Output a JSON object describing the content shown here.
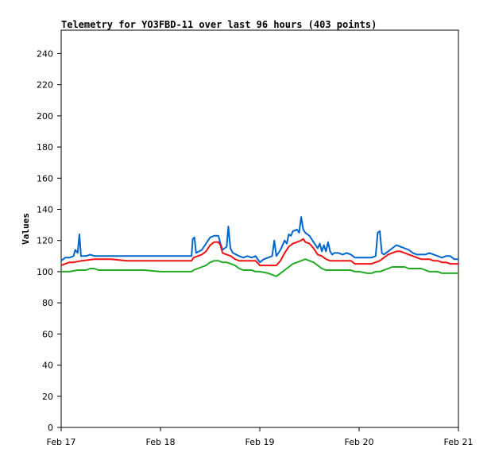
{
  "chart_data": {
    "type": "line",
    "title": "Telemetry for YO3FBD-11 over last 96 hours (403 points)",
    "xlabel": "",
    "ylabel": "Values",
    "xlim": [
      0,
      96
    ],
    "ylim": [
      0,
      255
    ],
    "grid": false,
    "x_ticks": [
      {
        "x": 0,
        "label": "Feb 17"
      },
      {
        "x": 24,
        "label": "Feb 18"
      },
      {
        "x": 48,
        "label": "Feb 19"
      },
      {
        "x": 72,
        "label": "Feb 20"
      },
      {
        "x": 96,
        "label": "Feb 21"
      }
    ],
    "y_ticks": [
      0,
      20,
      40,
      60,
      80,
      100,
      120,
      140,
      160,
      180,
      200,
      220,
      240
    ],
    "series": [
      {
        "color": "#0066cc",
        "points": [
          [
            0,
            107
          ],
          [
            1,
            109
          ],
          [
            2,
            109
          ],
          [
            3,
            110
          ],
          [
            3.4,
            114
          ],
          [
            4,
            112
          ],
          [
            4.4,
            124
          ],
          [
            4.8,
            110
          ],
          [
            6,
            110
          ],
          [
            7,
            111
          ],
          [
            8,
            110
          ],
          [
            10,
            110
          ],
          [
            16,
            110
          ],
          [
            20,
            110
          ],
          [
            24,
            110
          ],
          [
            28,
            110
          ],
          [
            31.5,
            110
          ],
          [
            31.8,
            121
          ],
          [
            32.2,
            122
          ],
          [
            32.6,
            112
          ],
          [
            34,
            114
          ],
          [
            35,
            118
          ],
          [
            36,
            122
          ],
          [
            37,
            123
          ],
          [
            38,
            123
          ],
          [
            38.5,
            118
          ],
          [
            39,
            114
          ],
          [
            40,
            116
          ],
          [
            40.4,
            129
          ],
          [
            40.9,
            115
          ],
          [
            41.5,
            112
          ],
          [
            43,
            110
          ],
          [
            44,
            109
          ],
          [
            45,
            110
          ],
          [
            46,
            109
          ],
          [
            47,
            110
          ],
          [
            48,
            106
          ],
          [
            49,
            108
          ],
          [
            50,
            109
          ],
          [
            51,
            110
          ],
          [
            51.5,
            120
          ],
          [
            52,
            110
          ],
          [
            53,
            114
          ],
          [
            54,
            120
          ],
          [
            54.5,
            118
          ],
          [
            55,
            124
          ],
          [
            55.5,
            123
          ],
          [
            56,
            126
          ],
          [
            57,
            127
          ],
          [
            57.5,
            125
          ],
          [
            58,
            135
          ],
          [
            58.5,
            127
          ],
          [
            59,
            125
          ],
          [
            60,
            123
          ],
          [
            61,
            119
          ],
          [
            62,
            115
          ],
          [
            62.5,
            118
          ],
          [
            63,
            113
          ],
          [
            63.5,
            117
          ],
          [
            64,
            113
          ],
          [
            64.5,
            119
          ],
          [
            65,
            113
          ],
          [
            65.5,
            111
          ],
          [
            66,
            112
          ],
          [
            67,
            112
          ],
          [
            68,
            111
          ],
          [
            69,
            112
          ],
          [
            70,
            111
          ],
          [
            71,
            109
          ],
          [
            72,
            109
          ],
          [
            73,
            109
          ],
          [
            75,
            109
          ],
          [
            76,
            110
          ],
          [
            76.5,
            125
          ],
          [
            77,
            126
          ],
          [
            77.5,
            112
          ],
          [
            78,
            111
          ],
          [
            79,
            113
          ],
          [
            80,
            115
          ],
          [
            81,
            117
          ],
          [
            82,
            116
          ],
          [
            83,
            115
          ],
          [
            84,
            114
          ],
          [
            85,
            112
          ],
          [
            86,
            111
          ],
          [
            87,
            111
          ],
          [
            88,
            111
          ],
          [
            89,
            112
          ],
          [
            90,
            111
          ],
          [
            91,
            110
          ],
          [
            92,
            109
          ],
          [
            93,
            110
          ],
          [
            94,
            110
          ],
          [
            95,
            108
          ],
          [
            96,
            108
          ]
        ]
      },
      {
        "color": "#ee1111",
        "points": [
          [
            0,
            104
          ],
          [
            1,
            105
          ],
          [
            2,
            106
          ],
          [
            3,
            106
          ],
          [
            5,
            107
          ],
          [
            8,
            108
          ],
          [
            12,
            108
          ],
          [
            16,
            107
          ],
          [
            20,
            107
          ],
          [
            24,
            107
          ],
          [
            28,
            107
          ],
          [
            31.5,
            107
          ],
          [
            32,
            109
          ],
          [
            33,
            110
          ],
          [
            34,
            111
          ],
          [
            35,
            113
          ],
          [
            36,
            117
          ],
          [
            37,
            119
          ],
          [
            38,
            119
          ],
          [
            38.5,
            117
          ],
          [
            39,
            112
          ],
          [
            40,
            111
          ],
          [
            41,
            110
          ],
          [
            42,
            108
          ],
          [
            43,
            107
          ],
          [
            44,
            107
          ],
          [
            45,
            107
          ],
          [
            47,
            107
          ],
          [
            48,
            104
          ],
          [
            50,
            104
          ],
          [
            51,
            104
          ],
          [
            52,
            104
          ],
          [
            53,
            107
          ],
          [
            54,
            112
          ],
          [
            55,
            116
          ],
          [
            56,
            118
          ],
          [
            57,
            119
          ],
          [
            58,
            120
          ],
          [
            58.5,
            121
          ],
          [
            59,
            119
          ],
          [
            60,
            118
          ],
          [
            61,
            115
          ],
          [
            62,
            111
          ],
          [
            63,
            110
          ],
          [
            64,
            108
          ],
          [
            65,
            107
          ],
          [
            66,
            107
          ],
          [
            67,
            107
          ],
          [
            68,
            107
          ],
          [
            70,
            107
          ],
          [
            71,
            105
          ],
          [
            72,
            105
          ],
          [
            74,
            105
          ],
          [
            75,
            105
          ],
          [
            76,
            106
          ],
          [
            77,
            107
          ],
          [
            78,
            109
          ],
          [
            79,
            111
          ],
          [
            80,
            112
          ],
          [
            81,
            113
          ],
          [
            82,
            113
          ],
          [
            83,
            112
          ],
          [
            84,
            111
          ],
          [
            85,
            110
          ],
          [
            86,
            109
          ],
          [
            87,
            108
          ],
          [
            88,
            108
          ],
          [
            89,
            108
          ],
          [
            90,
            107
          ],
          [
            91,
            107
          ],
          [
            92,
            106
          ],
          [
            93,
            106
          ],
          [
            94,
            105
          ],
          [
            95,
            105
          ],
          [
            96,
            105
          ]
        ]
      },
      {
        "color": "#22aa22",
        "points": [
          [
            0,
            100
          ],
          [
            2,
            100
          ],
          [
            4,
            101
          ],
          [
            6,
            101
          ],
          [
            7,
            102
          ],
          [
            8,
            102
          ],
          [
            9,
            101
          ],
          [
            12,
            101
          ],
          [
            16,
            101
          ],
          [
            20,
            101
          ],
          [
            24,
            100
          ],
          [
            28,
            100
          ],
          [
            31.5,
            100
          ],
          [
            32,
            101
          ],
          [
            33,
            102
          ],
          [
            34,
            103
          ],
          [
            35,
            104
          ],
          [
            36,
            106
          ],
          [
            37,
            107
          ],
          [
            38,
            107
          ],
          [
            39,
            106
          ],
          [
            40,
            106
          ],
          [
            41,
            105
          ],
          [
            42,
            104
          ],
          [
            43,
            102
          ],
          [
            44,
            101
          ],
          [
            46,
            101
          ],
          [
            47,
            100
          ],
          [
            48,
            100
          ],
          [
            50,
            99
          ],
          [
            51,
            98
          ],
          [
            52,
            97
          ],
          [
            53,
            99
          ],
          [
            54,
            101
          ],
          [
            55,
            103
          ],
          [
            56,
            105
          ],
          [
            57,
            106
          ],
          [
            58,
            107
          ],
          [
            59,
            108
          ],
          [
            60,
            107
          ],
          [
            61,
            106
          ],
          [
            62,
            104
          ],
          [
            63,
            102
          ],
          [
            64,
            101
          ],
          [
            65,
            101
          ],
          [
            66,
            101
          ],
          [
            68,
            101
          ],
          [
            70,
            101
          ],
          [
            71,
            100
          ],
          [
            72,
            100
          ],
          [
            74,
            99
          ],
          [
            75,
            99
          ],
          [
            76,
            100
          ],
          [
            77,
            100
          ],
          [
            78,
            101
          ],
          [
            79,
            102
          ],
          [
            80,
            103
          ],
          [
            81,
            103
          ],
          [
            82,
            103
          ],
          [
            83,
            103
          ],
          [
            84,
            102
          ],
          [
            85,
            102
          ],
          [
            86,
            102
          ],
          [
            87,
            102
          ],
          [
            88,
            101
          ],
          [
            89,
            100
          ],
          [
            90,
            100
          ],
          [
            91,
            100
          ],
          [
            92,
            99
          ],
          [
            93,
            99
          ],
          [
            94,
            99
          ],
          [
            95,
            99
          ],
          [
            96,
            99
          ]
        ]
      }
    ]
  }
}
